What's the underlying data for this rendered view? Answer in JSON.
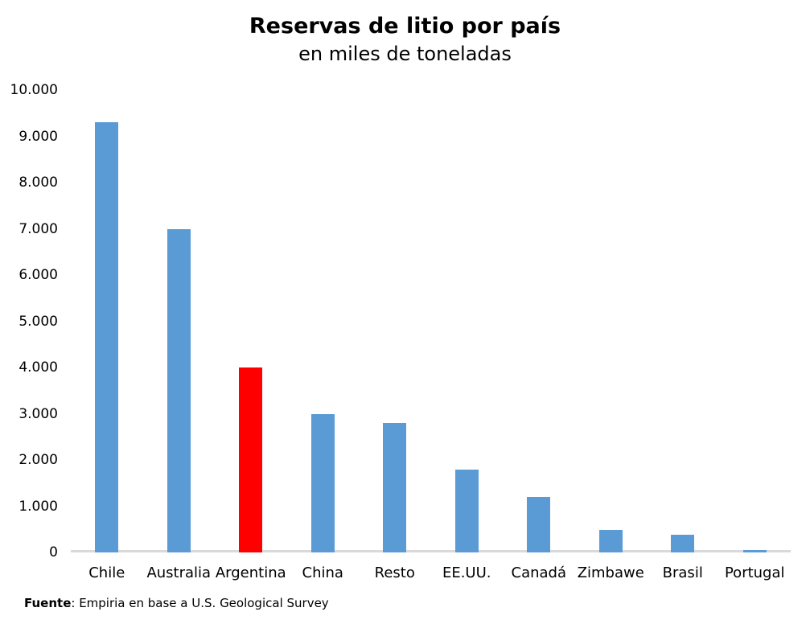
{
  "chart_data": {
    "type": "bar",
    "title": "Reservas de litio por país",
    "subtitle": "en miles de toneladas",
    "categories": [
      "Chile",
      "Australia",
      "Argentina",
      "China",
      "Resto",
      "EE.UU.",
      "Canadá",
      "Zimbawe",
      "Brasil",
      "Portugal"
    ],
    "values": [
      9300,
      7000,
      4000,
      3000,
      2800,
      1800,
      1200,
      480,
      390,
      60
    ],
    "highlight_index": 2,
    "highlight_category": "Argentina",
    "bar_color": "#5B9BD5",
    "highlight_color": "#FF0000",
    "axis_line_color": "#D9D9D9",
    "ylim": [
      0,
      10000
    ],
    "y_tick_step": 1000,
    "y_tick_labels": [
      "0",
      "1.000",
      "2.000",
      "3.000",
      "4.000",
      "5.000",
      "6.000",
      "7.000",
      "8.000",
      "9.000",
      "10.000"
    ],
    "grid": false,
    "legend": false,
    "xlabel": "",
    "ylabel": ""
  },
  "footer": {
    "source_label": "Fuente",
    "source_text": ": Empiria en base a U.S. Geological Survey"
  }
}
